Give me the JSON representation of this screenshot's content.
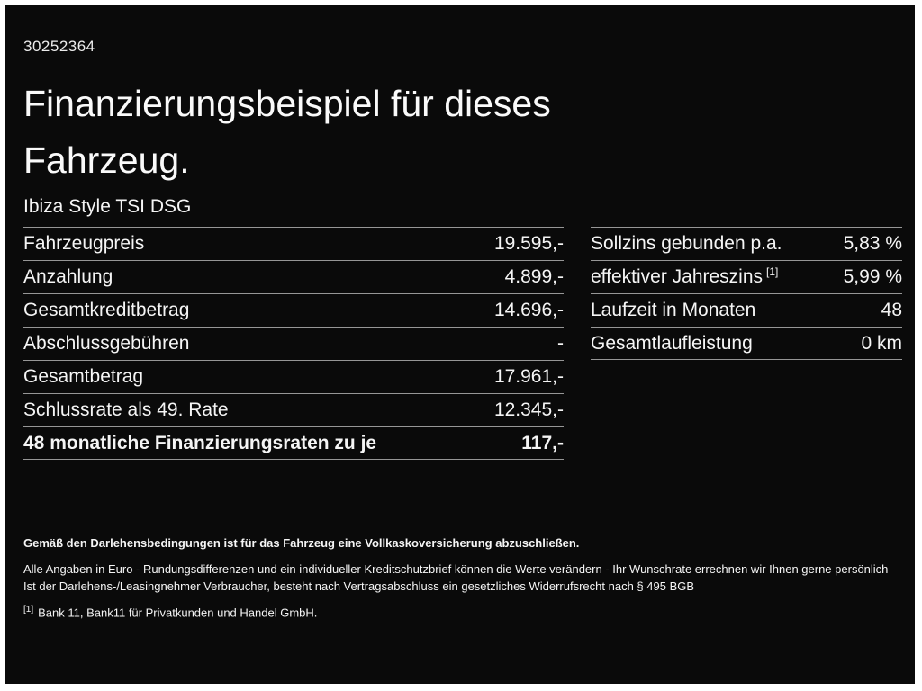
{
  "colors": {
    "background": "#0a0a0a",
    "frame": "#ffffff",
    "text": "#f5f5f5",
    "divider": "#969696"
  },
  "header": {
    "document_id": "30252364",
    "title_line1": "Finanzierungsbeispiel für dieses",
    "title_line2": "Fahrzeug.",
    "vehicle": "Ibiza Style TSI DSG"
  },
  "financing_table": {
    "rows": [
      {
        "label": "Fahrzeugpreis",
        "value": "19.595,-"
      },
      {
        "label": "Anzahlung",
        "value": "4.899,-"
      },
      {
        "label": "Gesamtkreditbetrag",
        "value": "14.696,-"
      },
      {
        "label": "Abschlussgebühren",
        "value": "-"
      },
      {
        "label": "Gesamtbetrag",
        "value": "17.961,-"
      },
      {
        "label": "Schlussrate als 49. Rate",
        "value": "12.345,-"
      },
      {
        "label": "48 monatliche Finanzierungsraten zu je",
        "value": "117,-"
      }
    ]
  },
  "conditions_table": {
    "rows": [
      {
        "label": "Sollzins gebunden p.a.",
        "sup": "",
        "value": "5,83 %"
      },
      {
        "label": "effektiver Jahreszins",
        "sup": "[1]",
        "value": "5,99 %"
      },
      {
        "label": "Laufzeit in Monaten",
        "sup": "",
        "value": "48"
      },
      {
        "label": "Gesamtlaufleistung",
        "sup": "",
        "value": "0 km"
      }
    ]
  },
  "footer": {
    "insurance_note": "Gemäß den Darlehensbedingungen ist für das Fahrzeug eine Vollkaskoversicherung abzuschließen.",
    "disclaimer_line1": "Alle Angaben in Euro - Rundungsdifferenzen und ein individueller Kreditschutzbrief können die Werte verändern - Ihr Wunschrate errechnen wir Ihnen gerne persönlich",
    "disclaimer_line2": "Ist der Darlehens-/Leasingnehmer Verbraucher, besteht nach Vertragsabschluss ein gesetzliches Widerrufsrecht nach § 495 BGB",
    "footnote_marker": "[1]",
    "footnote_text": "Bank 11, Bank11 für Privatkunden und Handel GmbH."
  }
}
